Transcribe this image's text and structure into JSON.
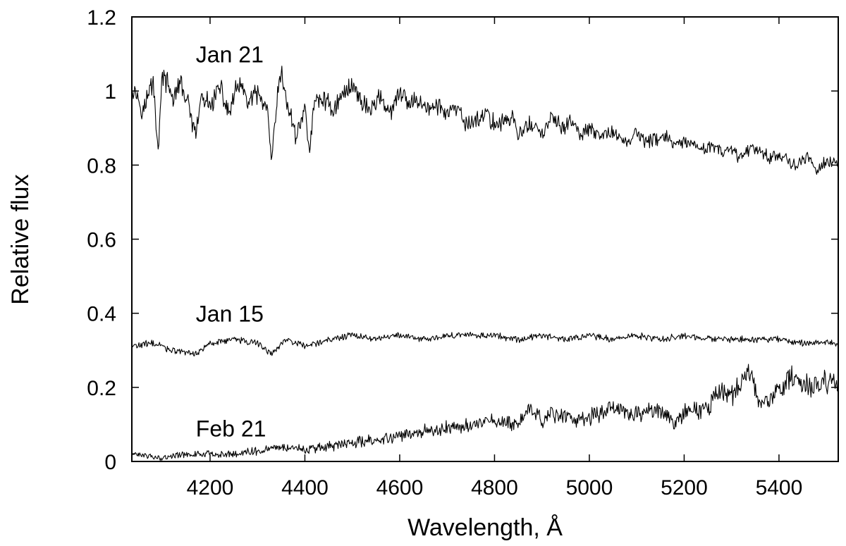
{
  "chart_data": {
    "type": "line",
    "title": "",
    "xlabel": "Wavelength, Å",
    "ylabel": "Relative flux",
    "xlim": [
      4035,
      5525
    ],
    "ylim": [
      0,
      1.2
    ],
    "xticks": [
      4200,
      4400,
      4600,
      4800,
      5000,
      5200,
      5400
    ],
    "xtick_labels": [
      "4200",
      "4400",
      "4600",
      "4800",
      "5000",
      "5200",
      "5400"
    ],
    "yticks": [
      0,
      0.2,
      0.4,
      0.6,
      0.8,
      1.0,
      1.2
    ],
    "ytick_labels": [
      "0",
      "0.2",
      "0.4",
      "0.6",
      "0.8",
      "1",
      "1.2"
    ],
    "grid": false,
    "legend": "none",
    "series": [
      {
        "name": "Jan 21",
        "label_at": [
          4170,
          1.1
        ],
        "x": [
          4035,
          4060,
          4080,
          4090,
          4100,
          4120,
          4140,
          4160,
          4170,
          4180,
          4200,
          4220,
          4240,
          4260,
          4280,
          4300,
          4320,
          4330,
          4340,
          4350,
          4360,
          4380,
          4400,
          4410,
          4420,
          4440,
          4460,
          4480,
          4500,
          4520,
          4540,
          4560,
          4580,
          4600,
          4620,
          4640,
          4660,
          4680,
          4700,
          4720,
          4740,
          4760,
          4780,
          4800,
          4820,
          4840,
          4850,
          4860,
          4880,
          4900,
          4920,
          4940,
          4960,
          4980,
          5000,
          5020,
          5040,
          5060,
          5080,
          5100,
          5120,
          5140,
          5160,
          5180,
          5200,
          5220,
          5240,
          5260,
          5280,
          5300,
          5320,
          5340,
          5360,
          5380,
          5400,
          5420,
          5440,
          5460,
          5480,
          5500,
          5525
        ],
        "y": [
          1.02,
          0.95,
          1.03,
          0.84,
          1.05,
          0.98,
          1.02,
          0.93,
          0.87,
          0.98,
          0.96,
          1.01,
          0.94,
          1.02,
          0.97,
          0.99,
          0.95,
          0.8,
          0.96,
          1.05,
          0.98,
          0.88,
          0.95,
          0.84,
          0.97,
          0.98,
          0.95,
          0.99,
          1.02,
          0.97,
          0.95,
          0.99,
          0.93,
          1.0,
          0.96,
          0.98,
          0.95,
          0.96,
          0.94,
          0.95,
          0.91,
          0.92,
          0.94,
          0.91,
          0.92,
          0.93,
          0.87,
          0.9,
          0.91,
          0.88,
          0.93,
          0.9,
          0.92,
          0.88,
          0.9,
          0.87,
          0.89,
          0.88,
          0.86,
          0.89,
          0.86,
          0.87,
          0.88,
          0.85,
          0.86,
          0.85,
          0.84,
          0.86,
          0.83,
          0.84,
          0.82,
          0.85,
          0.84,
          0.82,
          0.83,
          0.81,
          0.8,
          0.82,
          0.79,
          0.81,
          0.8
        ]
      },
      {
        "name": "Jan 15",
        "label_at": [
          4170,
          0.4
        ],
        "x": [
          4035,
          4080,
          4120,
          4170,
          4200,
          4250,
          4300,
          4330,
          4360,
          4400,
          4450,
          4500,
          4550,
          4600,
          4650,
          4700,
          4750,
          4800,
          4850,
          4900,
          4950,
          5000,
          5050,
          5100,
          5150,
          5200,
          5250,
          5300,
          5350,
          5400,
          5450,
          5500,
          5525
        ],
        "y": [
          0.31,
          0.32,
          0.3,
          0.29,
          0.32,
          0.33,
          0.32,
          0.29,
          0.33,
          0.31,
          0.33,
          0.34,
          0.33,
          0.34,
          0.33,
          0.34,
          0.34,
          0.34,
          0.33,
          0.34,
          0.33,
          0.34,
          0.33,
          0.34,
          0.33,
          0.34,
          0.33,
          0.33,
          0.33,
          0.33,
          0.32,
          0.32,
          0.32
        ]
      },
      {
        "name": "Feb 21",
        "label_at": [
          4170,
          0.09
        ],
        "x": [
          4035,
          4100,
          4150,
          4200,
          4250,
          4300,
          4350,
          4400,
          4450,
          4500,
          4550,
          4600,
          4650,
          4700,
          4750,
          4800,
          4850,
          4880,
          4900,
          4920,
          4950,
          5000,
          5050,
          5100,
          5150,
          5180,
          5200,
          5250,
          5280,
          5300,
          5340,
          5360,
          5400,
          5420,
          5450,
          5480,
          5500,
          5525
        ],
        "y": [
          0.02,
          0.01,
          0.02,
          0.02,
          0.02,
          0.03,
          0.04,
          0.03,
          0.04,
          0.05,
          0.06,
          0.07,
          0.08,
          0.09,
          0.1,
          0.11,
          0.1,
          0.15,
          0.1,
          0.13,
          0.12,
          0.12,
          0.15,
          0.13,
          0.14,
          0.1,
          0.13,
          0.15,
          0.19,
          0.18,
          0.24,
          0.15,
          0.19,
          0.23,
          0.21,
          0.2,
          0.22,
          0.2
        ]
      }
    ]
  }
}
